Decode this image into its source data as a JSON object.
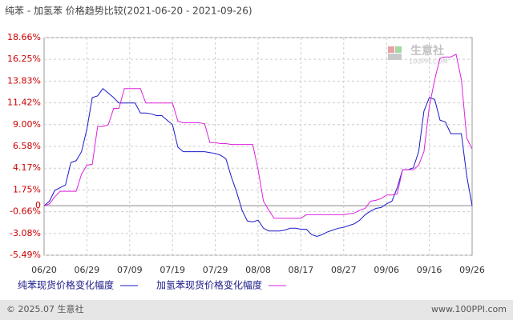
{
  "chart_data": {
    "type": "line",
    "title": "纯苯 - 加氢苯 价格趋势比较(2021-06-20 - 2021-09-26)",
    "categories": [
      "06/20",
      null,
      null,
      null,
      null,
      null,
      null,
      null,
      "06/29",
      null,
      null,
      null,
      null,
      null,
      null,
      null,
      "07/09",
      null,
      null,
      null,
      null,
      null,
      null,
      null,
      "07/19",
      null,
      null,
      null,
      null,
      null,
      null,
      null,
      "07/29",
      null,
      null,
      null,
      null,
      null,
      null,
      null,
      "08/08",
      null,
      null,
      null,
      null,
      null,
      null,
      null,
      "08/17",
      null,
      null,
      null,
      null,
      null,
      null,
      null,
      "08/27",
      null,
      null,
      null,
      null,
      null,
      null,
      null,
      "09/06",
      null,
      null,
      null,
      null,
      null,
      null,
      null,
      "09/16",
      null,
      null,
      null,
      null,
      null,
      null,
      null,
      "09/26"
    ],
    "series": [
      {
        "name": "纯苯现货价格变化幅度",
        "color": "#1a1acc",
        "values": [
          0,
          0.5,
          1.7,
          2.0,
          2.3,
          4.8,
          5.0,
          6.0,
          8.5,
          12.0,
          12.2,
          13.0,
          12.5,
          12.0,
          11.4,
          11.4,
          11.4,
          11.4,
          10.3,
          10.3,
          10.2,
          10.0,
          10.0,
          9.5,
          9.0,
          6.5,
          6.0,
          6.0,
          6.0,
          6.0,
          6.0,
          5.9,
          5.8,
          5.6,
          5.2,
          3.2,
          1.5,
          -0.5,
          -1.7,
          -1.8,
          -1.6,
          -2.5,
          -2.8,
          -2.8,
          -2.8,
          -2.7,
          -2.5,
          -2.5,
          -2.6,
          -2.6,
          -3.2,
          -3.4,
          -3.2,
          -2.9,
          -2.7,
          -2.5,
          -2.4,
          -2.2,
          -2.0,
          -1.6,
          -1.0,
          -0.6,
          -0.3,
          -0.2,
          0.2,
          0.5,
          2.0,
          4.0,
          4.0,
          4.2,
          6.0,
          10.5,
          12.0,
          11.8,
          9.5,
          9.3,
          8.0,
          8.0,
          8.0,
          3.3,
          0.0
        ]
      },
      {
        "name": "加氢苯现货价格变化幅度",
        "color": "#dd22dd",
        "values": [
          0,
          0.2,
          1.0,
          1.6,
          1.6,
          1.6,
          1.6,
          3.5,
          4.5,
          4.6,
          8.8,
          8.8,
          9.0,
          10.8,
          10.8,
          13.0,
          13.0,
          13.0,
          13.0,
          11.4,
          11.4,
          11.4,
          11.4,
          11.4,
          11.4,
          9.4,
          9.2,
          9.2,
          9.2,
          9.2,
          9.1,
          7.0,
          7.0,
          6.9,
          6.9,
          6.8,
          6.8,
          6.8,
          6.8,
          6.8,
          4.0,
          0.5,
          -0.5,
          -1.4,
          -1.4,
          -1.4,
          -1.4,
          -1.4,
          -1.4,
          -1.0,
          -1.0,
          -1.0,
          -1.0,
          -1.0,
          -1.0,
          -1.0,
          -1.0,
          -0.9,
          -0.8,
          -0.5,
          -0.3,
          0.5,
          0.6,
          0.8,
          1.2,
          1.2,
          1.3,
          4.0,
          4.0,
          4.0,
          4.5,
          6.0,
          11.0,
          14.0,
          16.4,
          16.5,
          16.5,
          16.8,
          14.0,
          7.5,
          6.3
        ]
      }
    ],
    "ylim": [
      -5.49,
      18.66
    ],
    "yticks": [
      {
        "value": -5.49,
        "label": "-5.49%"
      },
      {
        "value": -3.08,
        "label": "-3.08%"
      },
      {
        "value": -0.66,
        "label": "-0.66%"
      },
      0,
      {
        "value": 1.75,
        "label": "1.75%"
      },
      {
        "value": 4.17,
        "label": "4.17%"
      },
      {
        "value": 6.58,
        "label": "6.58%"
      },
      {
        "value": 9.0,
        "label": "9.00%"
      },
      {
        "value": 11.42,
        "label": "11.42%"
      },
      {
        "value": 13.83,
        "label": "13.83%"
      },
      {
        "value": 16.25,
        "label": "16.25%"
      },
      {
        "value": 18.66,
        "label": "18.66%"
      }
    ],
    "grid": true,
    "watermark": "生意社",
    "watermark_sub": "100PPI.COM",
    "footer_left": "© 2025.07 生意社",
    "footer_right": "www.100PPI.com"
  }
}
